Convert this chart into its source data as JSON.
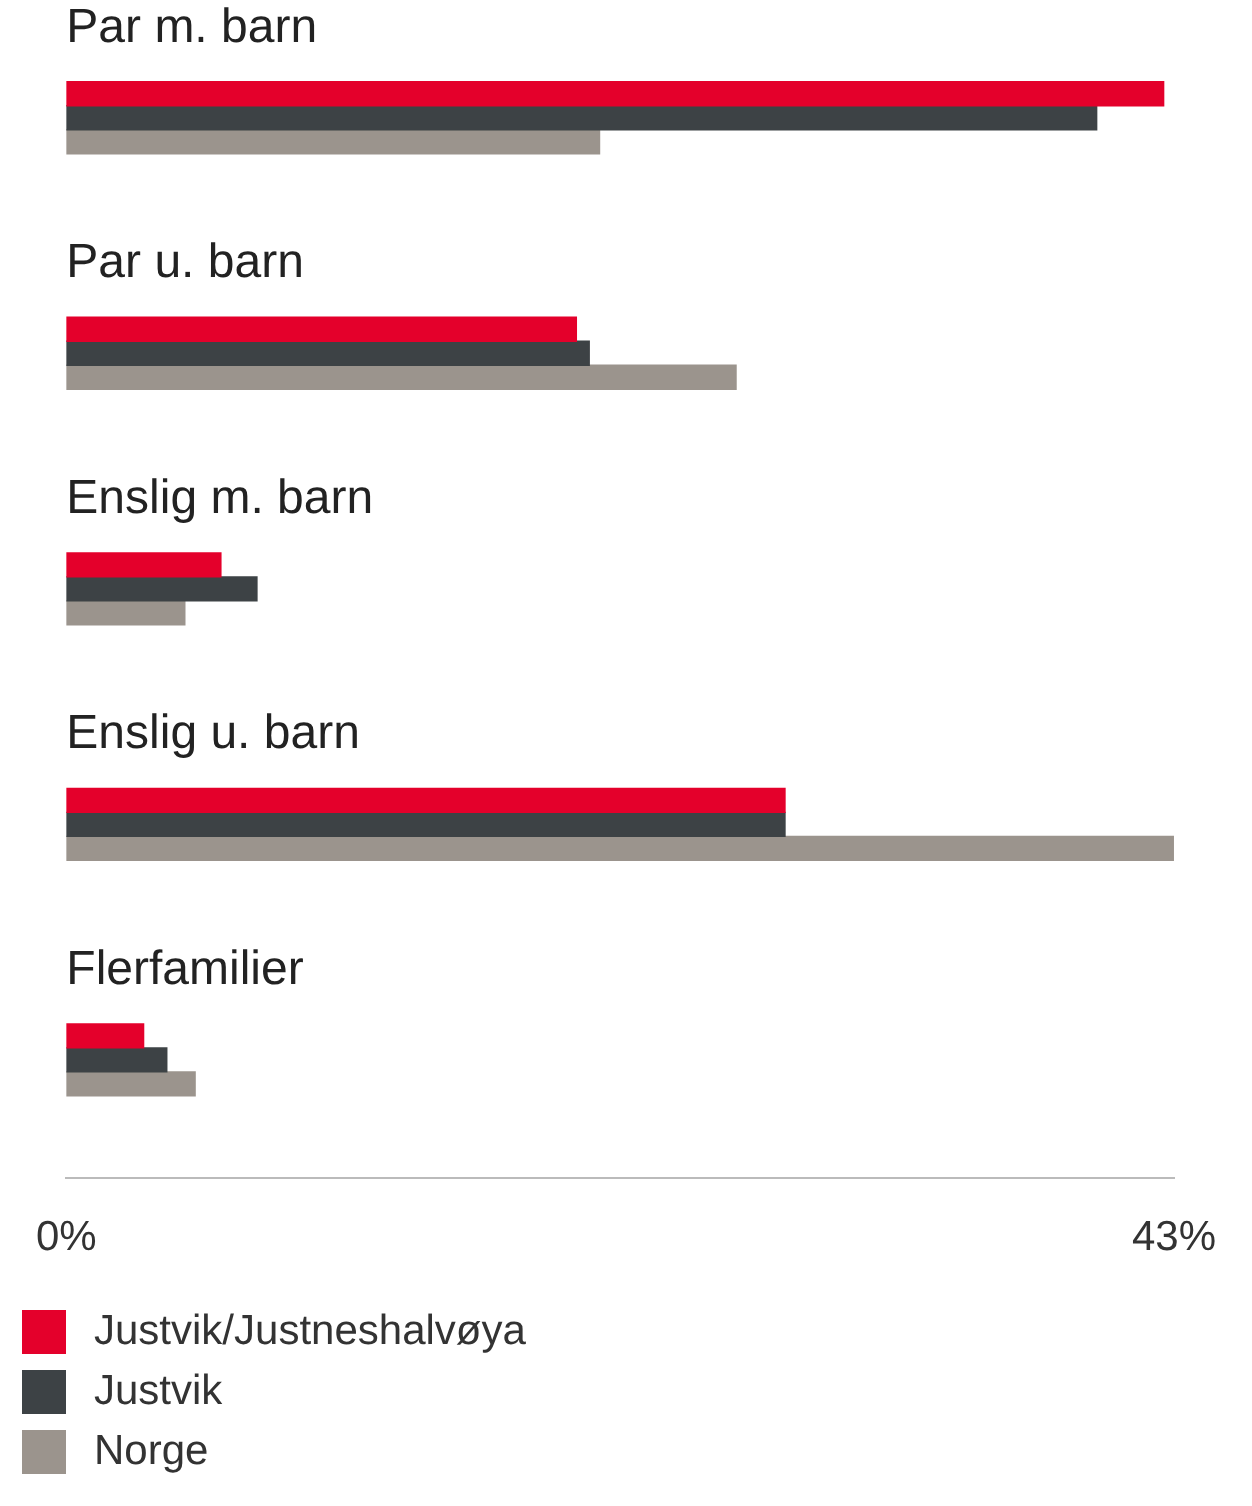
{
  "chart_data": {
    "type": "bar",
    "orientation": "horizontal",
    "categories": [
      "Par m. barn",
      "Par u. barn",
      "Enslig m. barn",
      "Enslig u. barn",
      "Flerfamilier"
    ],
    "series": [
      {
        "name": "Justvik/Justneshalvøya",
        "color": "#e4002b",
        "values": [
          42.6,
          19.8,
          6.0,
          27.9,
          3.0
        ]
      },
      {
        "name": "Justvik",
        "color": "#3d4245",
        "values": [
          40.0,
          20.3,
          7.4,
          27.9,
          3.9
        ]
      },
      {
        "name": "Norge",
        "color": "#9b948d",
        "values": [
          20.7,
          26.0,
          4.6,
          43.0,
          5.0
        ]
      }
    ],
    "xlim": [
      0,
      43
    ],
    "xticks": [
      {
        "value": 0,
        "label": "0%"
      },
      {
        "value": 43,
        "label": "43%"
      }
    ],
    "grid": false,
    "legend": "bottom left"
  }
}
